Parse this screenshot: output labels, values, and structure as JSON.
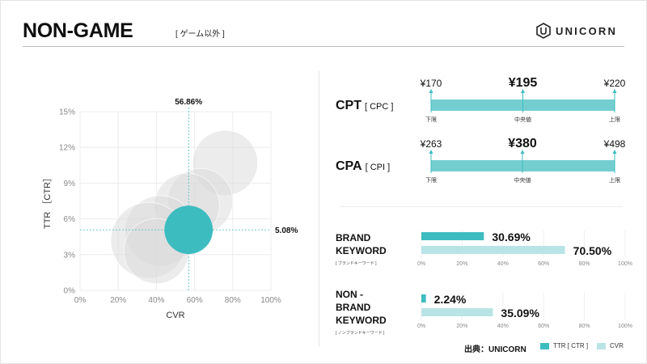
{
  "header": {
    "title": "NON-GAME",
    "subtitle": "[ ゲーム以外 ]",
    "logo_text": "UNICORN"
  },
  "colors": {
    "teal": "#3dbcc0",
    "light_teal": "#b9e4e5",
    "bubble_gray": "#dadada"
  },
  "chart_data": [
    {
      "type": "scatter",
      "title": "",
      "xlabel": "CVR",
      "ylabel": "TTR ［CTR］",
      "xlim": [
        0,
        100
      ],
      "ylim": [
        0,
        15
      ],
      "x_ticks": [
        "0%",
        "20%",
        "40%",
        "60%",
        "80%",
        "100%"
      ],
      "y_ticks": [
        "0%",
        "3%",
        "6%",
        "9%",
        "12%",
        "15%"
      ],
      "grid": true,
      "highlight": {
        "x": 56.86,
        "y": 5.08,
        "x_label": "56.86%",
        "y_label": "5.08%"
      },
      "series": [
        {
          "points": [
            {
              "x": 76,
              "y": 10.7,
              "r": 12
            },
            {
              "x": 63,
              "y": 7.5,
              "r": 12
            },
            {
              "x": 56,
              "y": 7.1,
              "r": 12
            },
            {
              "x": 42,
              "y": 5.0,
              "r": 13
            },
            {
              "x": 36,
              "y": 4.2,
              "r": 14
            },
            {
              "x": 40,
              "y": 3.3,
              "r": 12
            },
            {
              "x": 56.86,
              "y": 5.08,
              "r": 13
            }
          ]
        }
      ]
    },
    {
      "type": "bar",
      "title": "CPT",
      "subtitle": "[ CPC ]",
      "min": {
        "value": 170,
        "label": "¥170",
        "caption": "下限"
      },
      "median": {
        "value": 195,
        "label": "¥195",
        "caption": "中央値"
      },
      "max": {
        "value": 220,
        "label": "¥220",
        "caption": "上限"
      }
    },
    {
      "type": "bar",
      "title": "CPA",
      "subtitle": "[ CPI ]",
      "min": {
        "value": 263,
        "label": "¥263",
        "caption": "下限"
      },
      "median": {
        "value": 380,
        "label": "¥380",
        "caption": "中央値"
      },
      "max": {
        "value": 498,
        "label": "¥498",
        "caption": "上限"
      }
    },
    {
      "type": "bar",
      "title": "BRAND KEYWORD",
      "subtitle": "[ ブランドキーワード ]",
      "xlim": [
        0,
        100
      ],
      "x_ticks": [
        "0%",
        "20%",
        "40%",
        "60%",
        "80%",
        "100%"
      ],
      "series": [
        {
          "name": "TTR [ CTR ]",
          "value": 30.69,
          "label": "30.69%"
        },
        {
          "name": "CVR",
          "value": 70.5,
          "label": "70.50%"
        }
      ]
    },
    {
      "type": "bar",
      "title": "NON - BRAND KEYWORD",
      "subtitle": "[ ノンブランドキーワード ]",
      "xlim": [
        0,
        100
      ],
      "x_ticks": [
        "0%",
        "20%",
        "40%",
        "60%",
        "80%",
        "100%"
      ],
      "series": [
        {
          "name": "TTR [ CTR ]",
          "value": 2.24,
          "label": "2.24%"
        },
        {
          "name": "CVR",
          "value": 35.09,
          "label": "35.09%"
        }
      ]
    }
  ],
  "brand_label": {
    "line1": "BRAND",
    "line2": "KEYWORD"
  },
  "nonbrand_label": {
    "line1": "NON -",
    "line2": "BRAND",
    "line3": "KEYWORD"
  },
  "footer": {
    "source": "出典：UNICORN",
    "legend": [
      {
        "name": "TTR [ CTR ]"
      },
      {
        "name": "CVR"
      }
    ]
  }
}
